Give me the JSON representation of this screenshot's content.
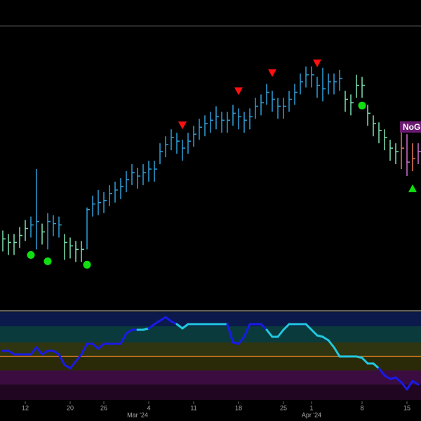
{
  "chart_data": {
    "type": "ohlc",
    "ylim": [
      0,
      405
    ],
    "series": [
      {
        "high": [
          112,
          107,
          107,
          117,
          127,
          132,
          200,
          122,
          137,
          134,
          132,
          107,
          102,
          97,
          97,
          145,
          162,
          170,
          167,
          177,
          182,
          187,
          197,
          207,
          202,
          207,
          212,
          212,
          237,
          247,
          257,
          252,
          242,
          252,
          262,
          272,
          277,
          282,
          290,
          282,
          282,
          292,
          287,
          282,
          287,
          302,
          307,
          322,
          312,
          302,
          302,
          312,
          322,
          337,
          347,
          347,
          332,
          345,
          337,
          337,
          342,
          312,
          307,
          335,
          332,
          292,
          277,
          267,
          257,
          242,
          237,
          255,
          250,
          237,
          237
        ],
        "low": [
          82,
          77,
          77,
          87,
          97,
          102,
          85,
          92,
          85,
          104,
          102,
          70,
          72,
          67,
          67,
          85,
          132,
          134,
          137,
          147,
          152,
          157,
          167,
          177,
          172,
          177,
          182,
          182,
          207,
          217,
          227,
          222,
          212,
          222,
          232,
          242,
          247,
          252,
          257,
          252,
          252,
          262,
          257,
          252,
          257,
          272,
          277,
          292,
          282,
          272,
          272,
          282,
          292,
          307,
          317,
          317,
          302,
          297,
          307,
          307,
          312,
          282,
          277,
          302,
          302,
          262,
          247,
          237,
          227,
          212,
          207,
          200,
          190,
          197,
          207
        ],
        "close": [
          100,
          95,
          95,
          105,
          115,
          120,
          125,
          110,
          125,
          122,
          120,
          95,
          90,
          85,
          85,
          142,
          150,
          152,
          155,
          165,
          170,
          175,
          185,
          195,
          190,
          195,
          200,
          200,
          225,
          235,
          245,
          240,
          230,
          240,
          250,
          260,
          265,
          270,
          275,
          270,
          270,
          280,
          275,
          270,
          275,
          290,
          295,
          310,
          300,
          290,
          290,
          300,
          310,
          325,
          335,
          335,
          320,
          315,
          325,
          325,
          330,
          300,
          295,
          320,
          320,
          280,
          265,
          255,
          245,
          230,
          225,
          230,
          210,
          215,
          225
        ],
        "colors": [
          "#7ee0b0",
          "#7ee0b0",
          "#7ee0b0",
          "#7ee0b0",
          "#7ee0b0",
          "#2f9fd8",
          "#2f9fd8",
          "#7ee0b0",
          "#2f9fd8",
          "#2f9fd8",
          "#2f9fd8",
          "#7ee0b0",
          "#7ee0b0",
          "#7ee0b0",
          "#7ee0b0",
          "#2f9fd8",
          "#2f9fd8",
          "#2f9fd8",
          "#2f9fd8",
          "#2f9fd8",
          "#2f9fd8",
          "#2f9fd8",
          "#2f9fd8",
          "#2f9fd8",
          "#2f9fd8",
          "#2f9fd8",
          "#2f9fd8",
          "#2f9fd8",
          "#2f9fd8",
          "#2f9fd8",
          "#2f9fd8",
          "#2f9fd8",
          "#2f9fd8",
          "#2f9fd8",
          "#2f9fd8",
          "#2f9fd8",
          "#2f9fd8",
          "#2f9fd8",
          "#2f9fd8",
          "#2f9fd8",
          "#2f9fd8",
          "#2f9fd8",
          "#2f9fd8",
          "#2f9fd8",
          "#2f9fd8",
          "#2f9fd8",
          "#2f9fd8",
          "#2f9fd8",
          "#2f9fd8",
          "#2f9fd8",
          "#2f9fd8",
          "#2f9fd8",
          "#2f9fd8",
          "#2f9fd8",
          "#2f9fd8",
          "#2f9fd8",
          "#2f9fd8",
          "#2f9fd8",
          "#2f9fd8",
          "#2f9fd8",
          "#2f9fd8",
          "#7ee0b0",
          "#7ee0b0",
          "#7ee0b0",
          "#7ee0b0",
          "#7ee0b0",
          "#7ee0b0",
          "#7ee0b0",
          "#7ee0b0",
          "#7ee0b0",
          "#7ee0b0",
          "#e8785a",
          "#d070d0",
          "#e8785a",
          "#d070d0"
        ]
      }
    ],
    "signals": [
      {
        "index": 32,
        "value": 263,
        "shape": "down",
        "color": "#ff1010"
      },
      {
        "index": 42,
        "value": 312,
        "shape": "down",
        "color": "#ff1010"
      },
      {
        "index": 48,
        "value": 338,
        "shape": "down",
        "color": "#ff1010"
      },
      {
        "index": 56,
        "value": 352,
        "shape": "down",
        "color": "#ff1010"
      },
      {
        "index": 5,
        "value": 77,
        "shape": "circle",
        "color": "#10e010"
      },
      {
        "index": 8,
        "value": 68,
        "shape": "circle",
        "color": "#10e010"
      },
      {
        "index": 15,
        "value": 63,
        "shape": "circle",
        "color": "#10e010"
      },
      {
        "index": 64,
        "value": 291,
        "shape": "circle",
        "color": "#10e010"
      },
      {
        "index": 73,
        "value": 172,
        "shape": "up",
        "color": "#10e010"
      }
    ],
    "badge_text": "NoG",
    "indicator": {
      "ylim": [
        0,
        125
      ],
      "values": [
        70,
        70,
        65,
        65,
        65,
        65,
        75,
        65,
        70,
        70,
        65,
        50,
        45,
        55,
        65,
        80,
        80,
        73,
        80,
        80,
        80,
        80,
        95,
        100,
        100,
        100,
        102,
        108,
        113,
        118,
        112,
        108,
        102,
        108,
        108,
        108,
        108,
        108,
        108,
        108,
        108,
        82,
        80,
        90,
        108,
        108,
        108,
        100,
        90,
        90,
        100,
        108,
        108,
        108,
        108,
        100,
        92,
        90,
        85,
        75,
        62,
        62,
        62,
        62,
        60,
        52,
        52,
        45,
        35,
        30,
        32,
        25,
        15,
        27,
        22
      ],
      "colors": [
        "#1a1ae6",
        "#1a1ae6",
        "#1a1ae6",
        "#1a1ae6",
        "#1a1ae6",
        "#1a1ae6",
        "#1a1ae6",
        "#1a1ae6",
        "#1a1ae6",
        "#1a1ae6",
        "#1a1ae6",
        "#1a1ae6",
        "#1a1ae6",
        "#1a1ae6",
        "#1a1ae6",
        "#1a1ae6",
        "#1a1ae6",
        "#1a1ae6",
        "#1a1ae6",
        "#1a1ae6",
        "#1a1ae6",
        "#1a1ae6",
        "#1a1ae6",
        "#1a1ae6",
        "#1a1ae6",
        "#22c8e0",
        "#22c8e0",
        "#1a1ae6",
        "#1a1ae6",
        "#1a1ae6",
        "#1a1ae6",
        "#1a1ae6",
        "#22c8e0",
        "#22c8e0",
        "#22c8e0",
        "#22c8e0",
        "#22c8e0",
        "#22c8e0",
        "#22c8e0",
        "#22c8e0",
        "#22c8e0",
        "#1a1ae6",
        "#1a1ae6",
        "#1a1ae6",
        "#1a1ae6",
        "#1a1ae6",
        "#1a1ae6",
        "#1a1ae6",
        "#22c8e0",
        "#22c8e0",
        "#22c8e0",
        "#22c8e0",
        "#22c8e0",
        "#22c8e0",
        "#22c8e0",
        "#22c8e0",
        "#22c8e0",
        "#22c8e0",
        "#22c8e0",
        "#22c8e0",
        "#22c8e0",
        "#22c8e0",
        "#22c8e0",
        "#22c8e0",
        "#22c8e0",
        "#22c8e0",
        "#22c8e0",
        "#22c8e0",
        "#1a1ae6",
        "#1a1ae6",
        "#1a1ae6",
        "#1a1ae6",
        "#1a1ae6",
        "#1a1ae6",
        "#1a1ae6"
      ],
      "bands": [
        {
          "from": 105,
          "to": 125,
          "color": "#0b1a4a"
        },
        {
          "from": 82,
          "to": 105,
          "color": "#0a3a3c"
        },
        {
          "from": 62,
          "to": 82,
          "color": "#2e3510"
        },
        {
          "from": 42,
          "to": 62,
          "color": "#2a2a08"
        },
        {
          "from": 22,
          "to": 42,
          "color": "#3a0c40"
        },
        {
          "from": 0,
          "to": 22,
          "color": "#200620"
        }
      ],
      "level": 62,
      "level_color": "#e08020"
    },
    "xticks": [
      {
        "value": 4,
        "label": "12"
      },
      {
        "value": 12,
        "label": "20"
      },
      {
        "value": 18,
        "label": "26"
      },
      {
        "value": 26,
        "label": "4"
      },
      {
        "value": 34,
        "label": "11"
      },
      {
        "value": 42,
        "label": "18"
      },
      {
        "value": 50,
        "label": "25"
      },
      {
        "value": 55,
        "label": "1"
      },
      {
        "value": 64,
        "label": "8"
      },
      {
        "value": 72,
        "label": "15"
      }
    ],
    "month_ticks": [
      {
        "value": 24,
        "label": "Mar '24"
      },
      {
        "value": 55,
        "label": "Apr '24"
      }
    ]
  }
}
